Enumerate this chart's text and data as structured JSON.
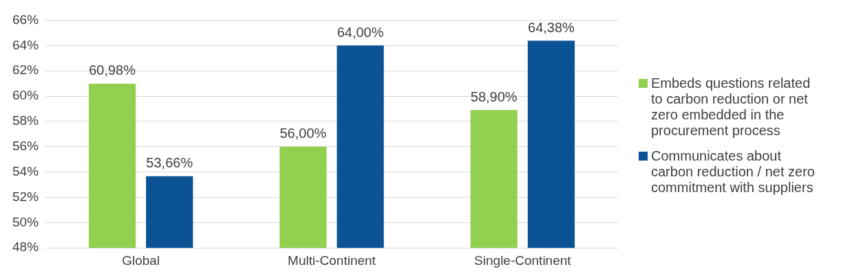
{
  "chart_data": {
    "type": "bar",
    "categories": [
      "Global",
      "Multi-Continent",
      "Single-Continent"
    ],
    "series": [
      {
        "name": "Embeds questions related to carbon reduction or net zero embedded in the procurement process",
        "color": "#92d050",
        "values": [
          60.98,
          56.0,
          58.9
        ],
        "value_labels": [
          "60,98%",
          "56,00%",
          "58,90%"
        ]
      },
      {
        "name": "Communicates about carbon reduction / net zero commitment with suppliers",
        "color": "#0b5394",
        "values": [
          53.66,
          64.0,
          64.38
        ],
        "value_labels": [
          "53,66%",
          "64,00%",
          "64,38%"
        ]
      }
    ],
    "ylim": [
      48,
      66
    ],
    "yticks": [
      {
        "value": 48,
        "label": "48%"
      },
      {
        "value": 50,
        "label": "50%"
      },
      {
        "value": 52,
        "label": "52%"
      },
      {
        "value": 54,
        "label": "54%"
      },
      {
        "value": 56,
        "label": "56%"
      },
      {
        "value": 58,
        "label": "58%"
      },
      {
        "value": 60,
        "label": "60%"
      },
      {
        "value": 62,
        "label": "62%"
      },
      {
        "value": 64,
        "label": "64%"
      },
      {
        "value": 66,
        "label": "66%"
      }
    ],
    "grid": "y",
    "legend": "right"
  }
}
